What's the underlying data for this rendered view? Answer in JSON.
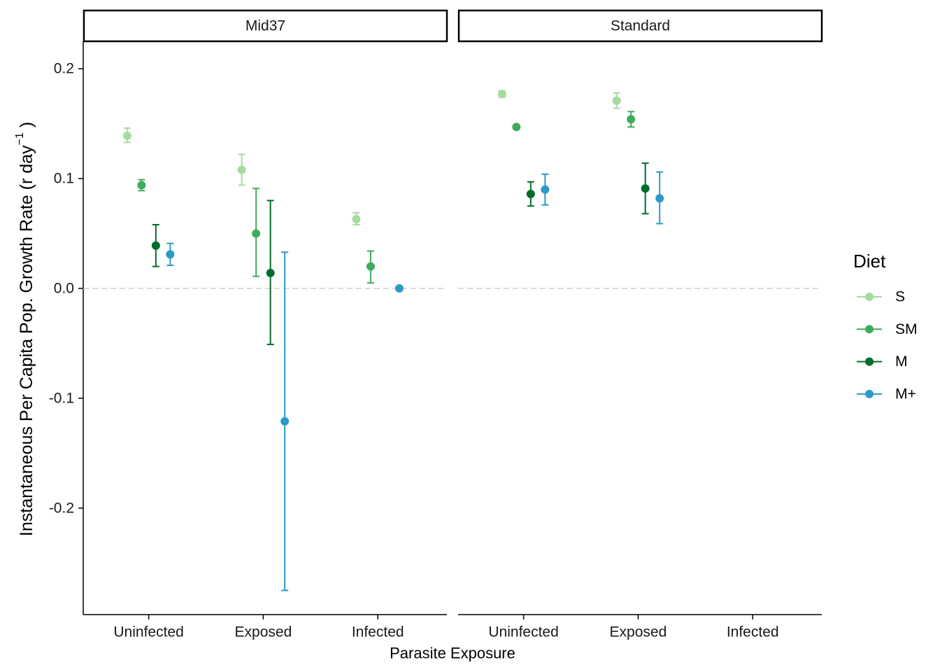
{
  "chart_data": {
    "type": "scatter",
    "subtype": "point-errorbar-faceted",
    "xlabel": "Parasite Exposure",
    "ylabel": "Instantaneous Per Capita Pop. Growth Rate (r day",
    "ylabel_superscript": "−1",
    "ylabel_close": " )",
    "ylim": [
      -0.297,
      0.225
    ],
    "yticks": [
      0.2,
      0.1,
      0.0,
      -0.1,
      -0.2
    ],
    "ytick_labels": [
      "0.2",
      "0.1",
      "0.0",
      "-0.1",
      "-0.2"
    ],
    "categories": [
      "Uninfected",
      "Exposed",
      "Infected"
    ],
    "reference_line": {
      "y": 0,
      "style": "dashed"
    },
    "grid": false,
    "legend": {
      "title": "Diet",
      "position": "right",
      "entries": [
        "S",
        "SM",
        "M",
        "M+"
      ]
    },
    "series_colors": {
      "S": "#a6dba0",
      "SM": "#41ab5d",
      "M": "#006d2c",
      "M+": "#2b9ac8"
    },
    "panels": [
      {
        "name": "Mid37",
        "points": [
          {
            "diet": "S",
            "category": "Uninfected",
            "y": 0.139,
            "ymin": 0.133,
            "ymax": 0.146
          },
          {
            "diet": "SM",
            "category": "Uninfected",
            "y": 0.094,
            "ymin": 0.089,
            "ymax": 0.099
          },
          {
            "diet": "M",
            "category": "Uninfected",
            "y": 0.039,
            "ymin": 0.02,
            "ymax": 0.058
          },
          {
            "diet": "M+",
            "category": "Uninfected",
            "y": 0.031,
            "ymin": 0.021,
            "ymax": 0.041
          },
          {
            "diet": "S",
            "category": "Exposed",
            "y": 0.108,
            "ymin": 0.094,
            "ymax": 0.122
          },
          {
            "diet": "SM",
            "category": "Exposed",
            "y": 0.05,
            "ymin": 0.011,
            "ymax": 0.091
          },
          {
            "diet": "M",
            "category": "Exposed",
            "y": 0.014,
            "ymin": -0.051,
            "ymax": 0.08
          },
          {
            "diet": "M+",
            "category": "Exposed",
            "y": -0.121,
            "ymin": -0.275,
            "ymax": 0.033
          },
          {
            "diet": "S",
            "category": "Infected",
            "y": 0.063,
            "ymin": 0.058,
            "ymax": 0.069
          },
          {
            "diet": "SM",
            "category": "Infected",
            "y": 0.02,
            "ymin": 0.005,
            "ymax": 0.034
          },
          {
            "diet": "M+",
            "category": "Infected",
            "y": 0.0,
            "ymin": -0.001,
            "ymax": 0.001
          }
        ]
      },
      {
        "name": "Standard",
        "points": [
          {
            "diet": "S",
            "category": "Uninfected",
            "y": 0.177,
            "ymin": 0.174,
            "ymax": 0.18
          },
          {
            "diet": "SM",
            "category": "Uninfected",
            "y": 0.147,
            "ymin": 0.145,
            "ymax": 0.148
          },
          {
            "diet": "M",
            "category": "Uninfected",
            "y": 0.086,
            "ymin": 0.075,
            "ymax": 0.097
          },
          {
            "diet": "M+",
            "category": "Uninfected",
            "y": 0.09,
            "ymin": 0.076,
            "ymax": 0.104
          },
          {
            "diet": "S",
            "category": "Exposed",
            "y": 0.171,
            "ymin": 0.164,
            "ymax": 0.178
          },
          {
            "diet": "SM",
            "category": "Exposed",
            "y": 0.154,
            "ymin": 0.147,
            "ymax": 0.161
          },
          {
            "diet": "M",
            "category": "Exposed",
            "y": 0.091,
            "ymin": 0.068,
            "ymax": 0.114
          },
          {
            "diet": "M+",
            "category": "Exposed",
            "y": 0.082,
            "ymin": 0.059,
            "ymax": 0.106
          }
        ]
      }
    ]
  }
}
